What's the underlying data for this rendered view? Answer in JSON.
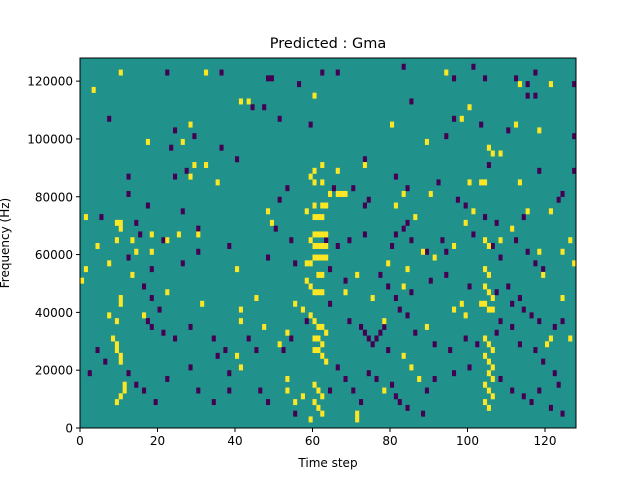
{
  "chart_data": {
    "type": "heatmap",
    "title": "Predicted : Gma",
    "xlabel": "Time step",
    "ylabel": "Frequency (Hz)",
    "xlim": [
      0,
      128
    ],
    "ylim": [
      0,
      128000
    ],
    "x_ticks": [
      0,
      20,
      40,
      60,
      80,
      100,
      120
    ],
    "y_ticks": [
      0,
      20000,
      40000,
      60000,
      80000,
      100000,
      120000
    ],
    "x_tick_labels": [
      "0",
      "20",
      "40",
      "60",
      "80",
      "100",
      "120"
    ],
    "y_tick_labels": [
      "0",
      "20000",
      "40000",
      "60000",
      "80000",
      "100000",
      "120000"
    ],
    "grid": false,
    "colormap": "viridis (3 levels)",
    "levels": [
      -1,
      0,
      1
    ],
    "colors": {
      "low": "#440154",
      "mid": "#21918c",
      "high": "#fde725"
    },
    "notes": "Three-valued spectrogram prediction: most cells mid (teal); sparse low (purple) and high (yellow) cells, with dense vertical high-value bands near time steps 59-63 and 103-107.",
    "high_cells": [
      [
        10,
        122000
      ],
      [
        32,
        122000
      ],
      [
        94,
        122000
      ],
      [
        113,
        118000
      ],
      [
        121,
        118000
      ],
      [
        3,
        116000
      ],
      [
        60,
        114000
      ],
      [
        41,
        112000
      ],
      [
        43,
        112000
      ],
      [
        100,
        110000
      ],
      [
        98,
        106000
      ],
      [
        112,
        104000
      ],
      [
        80,
        104000
      ],
      [
        28,
        104000
      ],
      [
        89,
        98000
      ],
      [
        17,
        98000
      ],
      [
        26,
        98000
      ],
      [
        105,
        96000
      ],
      [
        106,
        94000
      ],
      [
        108,
        94000
      ],
      [
        118,
        102000
      ],
      [
        29,
        90000
      ],
      [
        32,
        90000
      ],
      [
        62,
        90000
      ],
      [
        73,
        90000
      ],
      [
        60,
        88000
      ],
      [
        59,
        86000
      ],
      [
        66,
        88000
      ],
      [
        28,
        86000
      ],
      [
        35,
        84000
      ],
      [
        60,
        84000
      ],
      [
        62,
        84000
      ],
      [
        100,
        84000
      ],
      [
        103,
        84000
      ],
      [
        104,
        84000
      ],
      [
        113,
        84000
      ],
      [
        64,
        80000
      ],
      [
        66,
        80000
      ],
      [
        67,
        80000
      ],
      [
        68,
        80000
      ],
      [
        60,
        76000
      ],
      [
        62,
        76000
      ],
      [
        63,
        76000
      ],
      [
        58,
        74000
      ],
      [
        60,
        72000
      ],
      [
        61,
        72000
      ],
      [
        62,
        72000
      ],
      [
        1,
        72000
      ],
      [
        9,
        70000
      ],
      [
        10,
        70000
      ],
      [
        10,
        68000
      ],
      [
        18,
        66000
      ],
      [
        60,
        66000
      ],
      [
        61,
        66000
      ],
      [
        62,
        66000
      ],
      [
        63,
        66000
      ],
      [
        59,
        64000
      ],
      [
        60,
        62000
      ],
      [
        61,
        62000
      ],
      [
        62,
        62000
      ],
      [
        63,
        62000
      ],
      [
        104,
        64000
      ],
      [
        105,
        62000
      ],
      [
        60,
        58000
      ],
      [
        61,
        58000
      ],
      [
        62,
        58000
      ],
      [
        63,
        58000
      ],
      [
        58,
        56000
      ],
      [
        59,
        56000
      ],
      [
        84,
        54000
      ],
      [
        1,
        54000
      ],
      [
        0,
        50000
      ],
      [
        40,
        54000
      ],
      [
        104,
        54000
      ],
      [
        105,
        52000
      ],
      [
        61,
        52000
      ],
      [
        62,
        52000
      ],
      [
        58,
        50000
      ],
      [
        59,
        48000
      ],
      [
        60,
        46000
      ],
      [
        61,
        46000
      ],
      [
        62,
        46000
      ],
      [
        104,
        48000
      ],
      [
        105,
        46000
      ],
      [
        106,
        44000
      ],
      [
        103,
        42000
      ],
      [
        104,
        42000
      ],
      [
        105,
        40000
      ],
      [
        106,
        40000
      ],
      [
        10,
        44000
      ],
      [
        10,
        42000
      ],
      [
        7,
        38000
      ],
      [
        9,
        36000
      ],
      [
        16,
        38000
      ],
      [
        55,
        42000
      ],
      [
        57,
        40000
      ],
      [
        59,
        38000
      ],
      [
        60,
        36000
      ],
      [
        61,
        34000
      ],
      [
        62,
        34000
      ],
      [
        63,
        32000
      ],
      [
        60,
        30000
      ],
      [
        61,
        30000
      ],
      [
        62,
        28000
      ],
      [
        60,
        26000
      ],
      [
        61,
        26000
      ],
      [
        62,
        24000
      ],
      [
        63,
        22000
      ],
      [
        8,
        30000
      ],
      [
        9,
        28000
      ],
      [
        9,
        26000
      ],
      [
        10,
        24000
      ],
      [
        10,
        22000
      ],
      [
        104,
        30000
      ],
      [
        105,
        28000
      ],
      [
        106,
        26000
      ],
      [
        104,
        24000
      ],
      [
        105,
        22000
      ],
      [
        106,
        20000
      ],
      [
        105,
        18000
      ],
      [
        106,
        16000
      ],
      [
        104,
        14000
      ],
      [
        105,
        12000
      ],
      [
        106,
        10000
      ],
      [
        104,
        8000
      ],
      [
        105,
        6000
      ],
      [
        60,
        14000
      ],
      [
        61,
        12000
      ],
      [
        62,
        10000
      ],
      [
        60,
        8000
      ],
      [
        61,
        6000
      ],
      [
        62,
        4000
      ],
      [
        59,
        2000
      ],
      [
        71,
        2000
      ],
      [
        71,
        4000
      ],
      [
        55,
        8000
      ],
      [
        57,
        10000
      ],
      [
        53,
        12000
      ],
      [
        53,
        16000
      ],
      [
        41,
        20000
      ],
      [
        40,
        24000
      ],
      [
        11,
        14000
      ],
      [
        11,
        12000
      ],
      [
        10,
        10000
      ],
      [
        9,
        8000
      ],
      [
        41,
        36000
      ],
      [
        47,
        34000
      ],
      [
        53,
        32000
      ],
      [
        51,
        28000
      ],
      [
        78,
        36000
      ],
      [
        83,
        24000
      ],
      [
        85,
        20000
      ],
      [
        87,
        16000
      ],
      [
        78,
        12000
      ],
      [
        120,
        28000
      ],
      [
        121,
        30000
      ],
      [
        126,
        30000
      ],
      [
        124,
        44000
      ],
      [
        119,
        52000
      ],
      [
        127,
        56000
      ],
      [
        96,
        40000
      ],
      [
        98,
        42000
      ],
      [
        99,
        38000
      ],
      [
        89,
        34000
      ],
      [
        48,
        74000
      ],
      [
        49,
        70000
      ],
      [
        81,
        76000
      ],
      [
        83,
        80000
      ],
      [
        90,
        80000
      ],
      [
        86,
        72000
      ],
      [
        99,
        70000
      ],
      [
        101,
        74000
      ],
      [
        115,
        74000
      ],
      [
        121,
        74000
      ],
      [
        111,
        68000
      ],
      [
        108,
        64000
      ],
      [
        118,
        60000
      ],
      [
        124,
        60000
      ],
      [
        126,
        64000
      ],
      [
        96,
        62000
      ],
      [
        88,
        60000
      ],
      [
        91,
        58000
      ],
      [
        79,
        56000
      ],
      [
        71,
        52000
      ],
      [
        83,
        48000
      ],
      [
        75,
        44000
      ],
      [
        68,
        46000
      ],
      [
        45,
        44000
      ],
      [
        41,
        40000
      ],
      [
        31,
        42000
      ],
      [
        22,
        46000
      ],
      [
        13,
        52000
      ],
      [
        7,
        56000
      ],
      [
        14,
        60000
      ],
      [
        13,
        64000
      ],
      [
        18,
        60000
      ],
      [
        22,
        64000
      ],
      [
        25,
        66000
      ],
      [
        30,
        66000
      ],
      [
        9,
        64000
      ],
      [
        4,
        62000
      ]
    ],
    "low_cells": [
      [
        22,
        122000
      ],
      [
        36,
        122000
      ],
      [
        48,
        120000
      ],
      [
        49,
        120000
      ],
      [
        62,
        122000
      ],
      [
        66,
        122000
      ],
      [
        83,
        124000
      ],
      [
        101,
        124000
      ],
      [
        117,
        122000
      ],
      [
        96,
        120000
      ],
      [
        104,
        120000
      ],
      [
        112,
        120000
      ],
      [
        115,
        118000
      ],
      [
        127,
        118000
      ],
      [
        115,
        114000
      ],
      [
        117,
        114000
      ],
      [
        85,
        112000
      ],
      [
        44,
        110000
      ],
      [
        47,
        110000
      ],
      [
        56,
        118000
      ],
      [
        51,
        106000
      ],
      [
        59,
        104000
      ],
      [
        96,
        106000
      ],
      [
        103,
        104000
      ],
      [
        7,
        106000
      ],
      [
        24,
        102000
      ],
      [
        29,
        100000
      ],
      [
        23,
        96000
      ],
      [
        36,
        96000
      ],
      [
        40,
        92000
      ],
      [
        73,
        92000
      ],
      [
        94,
        100000
      ],
      [
        110,
        102000
      ],
      [
        127,
        100000
      ],
      [
        105,
        90000
      ],
      [
        118,
        88000
      ],
      [
        127,
        88000
      ],
      [
        84,
        82000
      ],
      [
        81,
        86000
      ],
      [
        27,
        88000
      ],
      [
        12,
        86000
      ],
      [
        24,
        86000
      ],
      [
        12,
        80000
      ],
      [
        65,
        82000
      ],
      [
        70,
        82000
      ],
      [
        73,
        76000
      ],
      [
        74,
        78000
      ],
      [
        51,
        78000
      ],
      [
        53,
        82000
      ],
      [
        92,
        84000
      ],
      [
        97,
        78000
      ],
      [
        99,
        76000
      ],
      [
        104,
        72000
      ],
      [
        107,
        70000
      ],
      [
        114,
        72000
      ],
      [
        123,
        78000
      ],
      [
        124,
        80000
      ],
      [
        17,
        76000
      ],
      [
        26,
        74000
      ],
      [
        5,
        72000
      ],
      [
        14,
        70000
      ],
      [
        15,
        66000
      ],
      [
        21,
        64000
      ],
      [
        30,
        68000
      ],
      [
        50,
        68000
      ],
      [
        54,
        64000
      ],
      [
        63,
        64000
      ],
      [
        66,
        62000
      ],
      [
        69,
        64000
      ],
      [
        73,
        66000
      ],
      [
        80,
        62000
      ],
      [
        81,
        66000
      ],
      [
        83,
        68000
      ],
      [
        84,
        70000
      ],
      [
        85,
        64000
      ],
      [
        89,
        60000
      ],
      [
        93,
        64000
      ],
      [
        94,
        60000
      ],
      [
        101,
        66000
      ],
      [
        106,
        62000
      ],
      [
        108,
        58000
      ],
      [
        112,
        64000
      ],
      [
        115,
        60000
      ],
      [
        117,
        56000
      ],
      [
        119,
        54000
      ],
      [
        12,
        58000
      ],
      [
        18,
        54000
      ],
      [
        26,
        56000
      ],
      [
        30,
        60000
      ],
      [
        38,
        62000
      ],
      [
        48,
        58000
      ],
      [
        55,
        56000
      ],
      [
        64,
        54000
      ],
      [
        68,
        50000
      ],
      [
        77,
        52000
      ],
      [
        79,
        48000
      ],
      [
        81,
        44000
      ],
      [
        85,
        46000
      ],
      [
        90,
        50000
      ],
      [
        94,
        52000
      ],
      [
        100,
        48000
      ],
      [
        107,
        46000
      ],
      [
        110,
        48000
      ],
      [
        111,
        42000
      ],
      [
        113,
        44000
      ],
      [
        114,
        40000
      ],
      [
        116,
        38000
      ],
      [
        118,
        36000
      ],
      [
        122,
        34000
      ],
      [
        124,
        36000
      ],
      [
        16,
        48000
      ],
      [
        18,
        44000
      ],
      [
        20,
        40000
      ],
      [
        17,
        36000
      ],
      [
        18,
        34000
      ],
      [
        21,
        32000
      ],
      [
        24,
        30000
      ],
      [
        28,
        34000
      ],
      [
        34,
        30000
      ],
      [
        37,
        26000
      ],
      [
        43,
        30000
      ],
      [
        45,
        26000
      ],
      [
        52,
        26000
      ],
      [
        54,
        30000
      ],
      [
        58,
        36000
      ],
      [
        64,
        42000
      ],
      [
        69,
        36000
      ],
      [
        72,
        34000
      ],
      [
        73,
        32000
      ],
      [
        74,
        30000
      ],
      [
        75,
        28000
      ],
      [
        76,
        30000
      ],
      [
        77,
        32000
      ],
      [
        78,
        34000
      ],
      [
        79,
        26000
      ],
      [
        82,
        40000
      ],
      [
        84,
        38000
      ],
      [
        86,
        32000
      ],
      [
        91,
        28000
      ],
      [
        95,
        26000
      ],
      [
        99,
        30000
      ],
      [
        102,
        28000
      ],
      [
        107,
        32000
      ],
      [
        108,
        36000
      ],
      [
        111,
        34000
      ],
      [
        113,
        28000
      ],
      [
        117,
        26000
      ],
      [
        119,
        22000
      ],
      [
        122,
        18000
      ],
      [
        123,
        14000
      ],
      [
        4,
        26000
      ],
      [
        6,
        22000
      ],
      [
        12,
        18000
      ],
      [
        14,
        14000
      ],
      [
        16,
        12000
      ],
      [
        19,
        8000
      ],
      [
        22,
        16000
      ],
      [
        28,
        20000
      ],
      [
        30,
        12000
      ],
      [
        35,
        24000
      ],
      [
        38,
        18000
      ],
      [
        46,
        12000
      ],
      [
        48,
        8000
      ],
      [
        55,
        4000
      ],
      [
        64,
        12000
      ],
      [
        66,
        20000
      ],
      [
        68,
        16000
      ],
      [
        70,
        12000
      ],
      [
        72,
        8000
      ],
      [
        74,
        18000
      ],
      [
        76,
        16000
      ],
      [
        80,
        14000
      ],
      [
        81,
        10000
      ],
      [
        82,
        8000
      ],
      [
        84,
        6000
      ],
      [
        88,
        4000
      ],
      [
        89,
        12000
      ],
      [
        91,
        16000
      ],
      [
        96,
        18000
      ],
      [
        100,
        20000
      ],
      [
        108,
        16000
      ],
      [
        111,
        12000
      ],
      [
        114,
        10000
      ],
      [
        116,
        8000
      ],
      [
        118,
        12000
      ],
      [
        121,
        6000
      ],
      [
        124,
        4000
      ],
      [
        2,
        18000
      ],
      [
        34,
        8000
      ],
      [
        38,
        12000
      ]
    ]
  }
}
